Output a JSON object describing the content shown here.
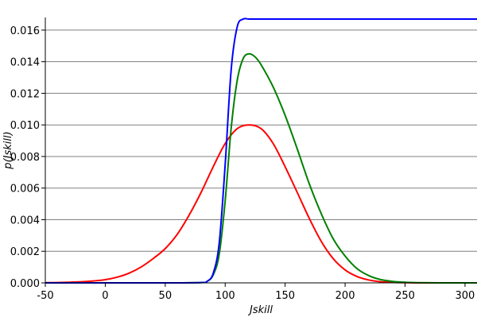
{
  "chart_data": {
    "type": "line",
    "title": "",
    "xlabel": "Jskill",
    "ylabel": "p(Jskill)",
    "xlim": [
      -50,
      310
    ],
    "ylim": [
      0,
      0.0168
    ],
    "x_ticks": [
      -50,
      0,
      50,
      100,
      150,
      200,
      250,
      300
    ],
    "x_tick_labels": [
      "-50",
      "0",
      "50",
      "100",
      "150",
      "200",
      "250",
      "300"
    ],
    "y_ticks": [
      0,
      0.002,
      0.004,
      0.006,
      0.008,
      0.01,
      0.012,
      0.014,
      0.016
    ],
    "y_tick_labels": [
      "0.000",
      "0.002",
      "0.004",
      "0.006",
      "0.008",
      "0.010",
      "0.012",
      "0.014",
      "0.016"
    ],
    "grid": "horizontal",
    "legend": "none",
    "series": [
      {
        "color": "#ff0000",
        "x": [
          -50,
          -40,
          -30,
          -20,
          -10,
          0,
          10,
          20,
          30,
          40,
          50,
          60,
          70,
          80,
          90,
          100,
          110,
          120,
          130,
          140,
          150,
          160,
          170,
          180,
          190,
          200,
          210,
          220,
          230,
          240,
          250,
          260,
          270,
          280,
          290,
          300,
          310
        ],
        "values": [
          1e-05,
          2e-05,
          4e-05,
          7e-05,
          0.00012,
          0.0002,
          0.00036,
          0.00062,
          0.00101,
          0.00154,
          0.00217,
          0.00307,
          0.0043,
          0.00574,
          0.00735,
          0.00882,
          0.00976,
          0.01,
          0.00976,
          0.00882,
          0.00735,
          0.00574,
          0.0041,
          0.00264,
          0.00154,
          0.00082,
          0.0004,
          0.00018,
          7e-05,
          3e-05,
          1e-05,
          0,
          0,
          0,
          0,
          0,
          0
        ]
      },
      {
        "color": "#008000",
        "x": [
          -50,
          0,
          50,
          80,
          85,
          90,
          95,
          100,
          105,
          110,
          115,
          120,
          125,
          130,
          140,
          150,
          160,
          170,
          180,
          190,
          200,
          210,
          220,
          230,
          240,
          250,
          260,
          280,
          310
        ],
        "values": [
          0,
          0,
          0,
          2e-05,
          0.0001,
          0.0005,
          0.0018,
          0.0052,
          0.0098,
          0.0128,
          0.0142,
          0.0145,
          0.0143,
          0.0138,
          0.0124,
          0.0106,
          0.0085,
          0.0063,
          0.0044,
          0.0028,
          0.0017,
          0.0009,
          0.00045,
          0.0002,
          9e-05,
          4e-05,
          1e-05,
          0,
          0
        ]
      },
      {
        "color": "#0000ff",
        "x": [
          -50,
          0,
          50,
          80,
          85,
          90,
          95,
          100,
          105,
          110,
          115,
          120,
          130,
          150,
          200,
          250,
          310
        ],
        "values": [
          0,
          0,
          0,
          2e-05,
          0.0001,
          0.0006,
          0.0025,
          0.0075,
          0.0135,
          0.0162,
          0.0167,
          0.0167,
          0.0167,
          0.0167,
          0.0167,
          0.0167,
          0.0167
        ]
      }
    ]
  }
}
